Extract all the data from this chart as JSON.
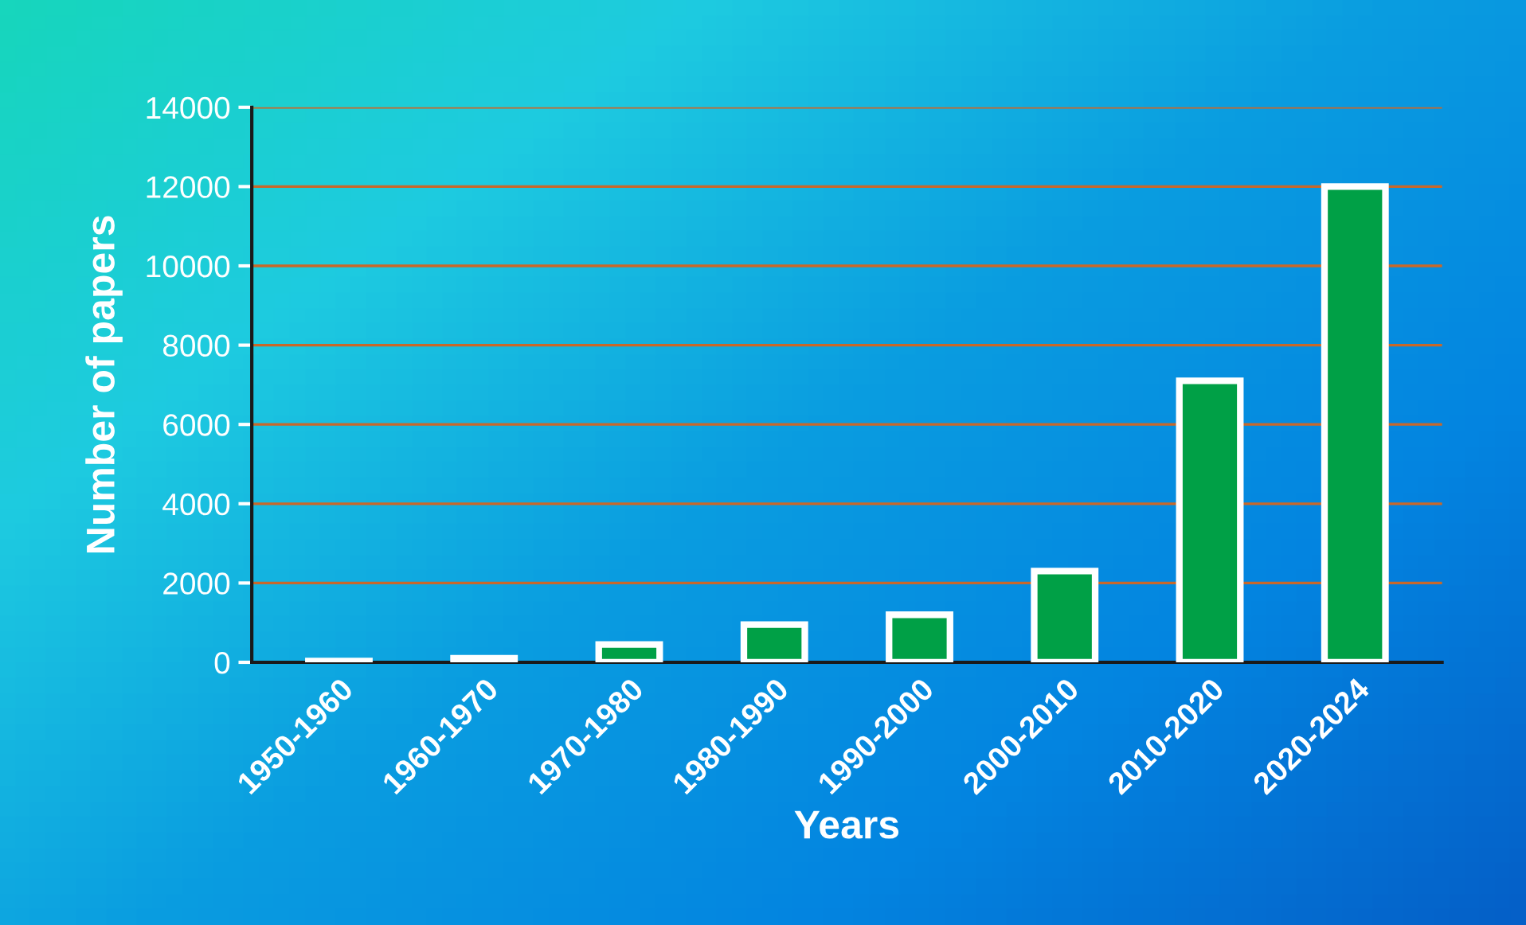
{
  "chart_data": {
    "type": "bar",
    "xlabel": "Years",
    "ylabel": "Number of papers",
    "categories": [
      "1950-1960",
      "1960-1970",
      "1970-1980",
      "1980-1990",
      "1990-2000",
      "2000-2010",
      "2010-2020",
      "2020-2024"
    ],
    "values": [
      30,
      100,
      450,
      950,
      1200,
      2300,
      7100,
      12000
    ],
    "color": "#00a046",
    "ylim": [
      0,
      14000
    ],
    "yticks": [
      0,
      2000,
      4000,
      6000,
      8000,
      10000,
      12000,
      14000
    ],
    "grid": "y",
    "legend": false
  }
}
